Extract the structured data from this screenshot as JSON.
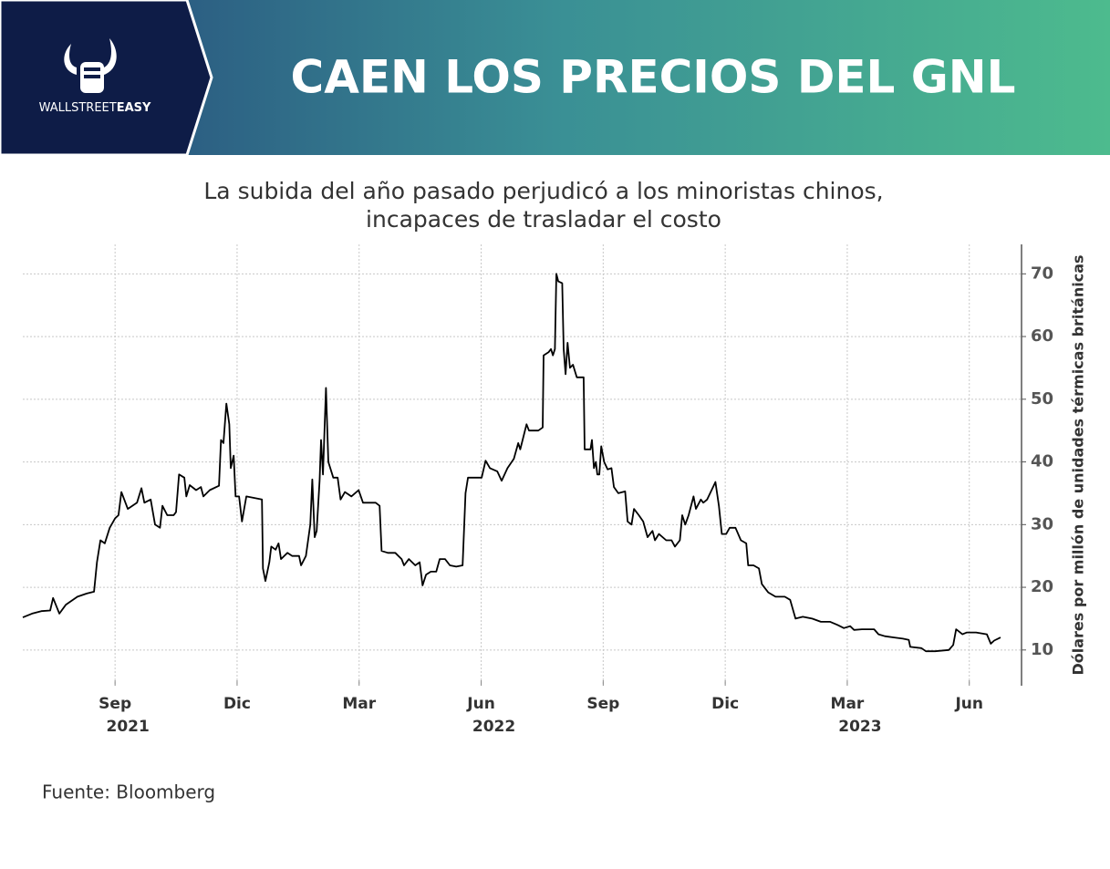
{
  "header": {
    "brand": "WALLSTREET",
    "brand_bold": "EASY",
    "title": "CAEN LOS PRECIOS DEL GNL"
  },
  "chart_data": {
    "type": "line",
    "subtitle": [
      "La subida del año pasado perjudicó a los minoristas chinos,",
      "incapaces de trasladar el costo"
    ],
    "y_label": "Dólares por millón de unidades térmicas británicas",
    "color": "#000000",
    "grid": true,
    "xlim": [
      2021.478,
      2023.524
    ],
    "ylim": [
      4.3,
      74.7
    ],
    "yticks": [
      10,
      20,
      30,
      40,
      50,
      60,
      70
    ],
    "xticks": [
      {
        "value": 2021.667,
        "label": "Sep"
      },
      {
        "value": 2021.917,
        "label": "Dic"
      },
      {
        "value": 2022.167,
        "label": "Mar"
      },
      {
        "value": 2022.417,
        "label": "Jun"
      },
      {
        "value": 2022.667,
        "label": "Sep"
      },
      {
        "value": 2022.917,
        "label": "Dic"
      },
      {
        "value": 2023.167,
        "label": "Mar"
      },
      {
        "value": 2023.417,
        "label": "Jun"
      }
    ],
    "year_labels": [
      {
        "value": 2021.667,
        "label": "2021"
      },
      {
        "value": 2022.417,
        "label": "2022"
      },
      {
        "value": 2023.167,
        "label": "2023"
      }
    ],
    "x": [
      2021.478,
      2021.497,
      2021.516,
      2021.534,
      2021.54,
      2021.553,
      2021.566,
      2021.59,
      2021.609,
      2021.624,
      2021.63,
      2021.637,
      2021.646,
      2021.656,
      2021.667,
      2021.674,
      2021.68,
      2021.693,
      2021.712,
      2021.721,
      2021.727,
      2021.74,
      2021.749,
      2021.759,
      2021.764,
      2021.774,
      2021.787,
      2021.792,
      2021.798,
      2021.809,
      2021.813,
      2021.82,
      2021.833,
      2021.843,
      2021.848,
      2021.861,
      2021.88,
      2021.884,
      2021.889,
      2021.895,
      2021.901,
      2021.904,
      2021.91,
      2021.914,
      2021.921,
      2021.927,
      2021.936,
      2021.955,
      2021.968,
      2021.97,
      2021.975,
      2021.983,
      2021.987,
      2021.996,
      2022.002,
      2022.007,
      2022.02,
      2022.03,
      2022.044,
      2022.048,
      2022.058,
      2022.067,
      2022.071,
      2022.076,
      2022.08,
      2022.086,
      2022.089,
      2022.093,
      2022.099,
      2022.104,
      2022.114,
      2022.123,
      2022.129,
      2022.138,
      2022.151,
      2022.166,
      2022.175,
      2022.188,
      2022.201,
      2022.209,
      2022.213,
      2022.226,
      2022.241,
      2022.254,
      2022.259,
      2022.269,
      2022.282,
      2022.291,
      2022.297,
      2022.304,
      2022.314,
      2022.325,
      2022.332,
      2022.343,
      2022.353,
      2022.366,
      2022.379,
      2022.385,
      2022.39,
      2022.403,
      2022.418,
      2022.426,
      2022.435,
      2022.45,
      2022.459,
      2022.471,
      2022.484,
      2022.493,
      2022.497,
      2022.502,
      2022.51,
      2022.515,
      2022.534,
      2022.543,
      2022.545,
      2022.555,
      2022.56,
      2022.564,
      2022.568,
      2022.571,
      2022.575,
      2022.583,
      2022.586,
      2022.59,
      2022.594,
      2022.599,
      2022.605,
      2022.613,
      2022.627,
      2022.629,
      2022.641,
      2022.644,
      2022.648,
      2022.652,
      2022.655,
      2022.659,
      2022.663,
      2022.669,
      2022.676,
      2022.684,
      2022.689,
      2022.698,
      2022.712,
      2022.717,
      2022.725,
      2022.73,
      2022.74,
      2022.749,
      2022.758,
      2022.768,
      2022.773,
      2022.781,
      2022.796,
      2022.807,
      2022.814,
      2022.824,
      2022.829,
      2022.835,
      2022.842,
      2022.852,
      2022.857,
      2022.867,
      2022.872,
      2022.88,
      2022.889,
      2022.897,
      2022.904,
      2022.91,
      2022.919,
      2022.926,
      2022.938,
      2022.949,
      2022.96,
      2022.964,
      2022.975,
      2022.986,
      2022.992,
      2023.005,
      2023.02,
      2023.039,
      2023.05,
      2023.061,
      2023.076,
      2023.095,
      2023.113,
      2023.132,
      2023.147,
      2023.16,
      2023.173,
      2023.181,
      2023.197,
      2023.222,
      2023.231,
      2023.244,
      2023.263,
      2023.281,
      2023.293,
      2023.296,
      2023.319,
      2023.328,
      2023.347,
      2023.375,
      2023.384,
      2023.39,
      2023.403,
      2023.412,
      2023.431,
      2023.453,
      2023.461,
      2023.468,
      2023.481
    ],
    "values": [
      15.2,
      15.8,
      16.2,
      16.3,
      18.3,
      15.8,
      17.2,
      18.5,
      19.0,
      19.3,
      24,
      27.5,
      27,
      29.5,
      31,
      31.5,
      35.2,
      32.5,
      33.5,
      35.8,
      33.5,
      34,
      30,
      29.5,
      33,
      31.5,
      31.5,
      32,
      38,
      37.5,
      34.5,
      36.3,
      35.5,
      36,
      34.5,
      35.5,
      36.2,
      43.5,
      43,
      49.3,
      46,
      39,
      41,
      34.5,
      34.5,
      30.5,
      34.5,
      34.2,
      34,
      23,
      21,
      24,
      26.5,
      26,
      27,
      24.5,
      25.5,
      25,
      25,
      23.5,
      25,
      30,
      37.2,
      28,
      29,
      37,
      43.5,
      38,
      51.8,
      40,
      37.5,
      37.5,
      34,
      35.2,
      34.5,
      35.5,
      33.5,
      33.5,
      33.5,
      33,
      25.8,
      25.5,
      25.5,
      24.5,
      23.5,
      24.5,
      23.5,
      24,
      20.3,
      22,
      22.5,
      22.5,
      24.5,
      24.5,
      23.5,
      23.3,
      23.5,
      35,
      37.5,
      37.5,
      37.5,
      40.2,
      39,
      38.5,
      37,
      39,
      40.5,
      43,
      42,
      43.5,
      46,
      45,
      45,
      45.5,
      57,
      57.5,
      58,
      57,
      58,
      70,
      68.8,
      68.5,
      58,
      54,
      59,
      55,
      55.5,
      53.5,
      53.5,
      42,
      42,
      43.5,
      39,
      40,
      38,
      38,
      42.5,
      40,
      38.8,
      39,
      36,
      35,
      35.3,
      30.5,
      30,
      32.5,
      31.5,
      30.5,
      28,
      29,
      27.5,
      28.5,
      27.5,
      27.5,
      26.5,
      27.5,
      31.5,
      30,
      31.5,
      34.5,
      32.5,
      34,
      33.5,
      34,
      35.5,
      36.8,
      33,
      28.5,
      28.5,
      29.5,
      29.5,
      27.5,
      27,
      23.5,
      23.5,
      23,
      20.5,
      19.2,
      18.5,
      18.5,
      18,
      15,
      15.3,
      15,
      14.5,
      14.5,
      14,
      13.5,
      13.8,
      13.2,
      13.3,
      13.3,
      12.5,
      12.2,
      12,
      11.8,
      11.6,
      10.5,
      10.3,
      9.8,
      9.8,
      10,
      10.8,
      13.3,
      12.5,
      12.8,
      12.8,
      12.5,
      11,
      11.5,
      12
    ]
  },
  "source": "Fuente: Bloomberg"
}
